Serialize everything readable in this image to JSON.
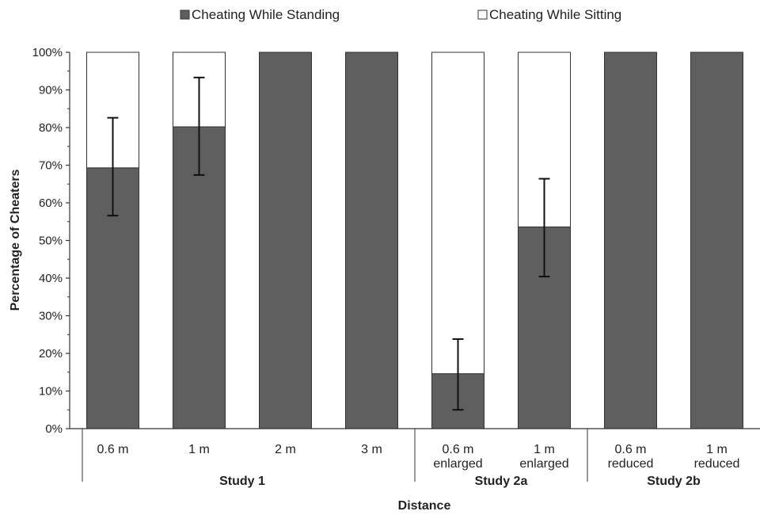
{
  "chart_data": {
    "type": "bar",
    "stacked": true,
    "xlabel": "Distance",
    "ylabel": "Percentage of Cheaters",
    "ylim": [
      0,
      100
    ],
    "yticks": [
      "0%",
      "10%",
      "20%",
      "30%",
      "40%",
      "50%",
      "60%",
      "70%",
      "80%",
      "90%",
      "100%"
    ],
    "legend_placement": "top",
    "categories": [
      [
        "0.6 m"
      ],
      [
        "1 m"
      ],
      [
        "2 m"
      ],
      [
        "3 m"
      ],
      [
        "0.6 m",
        "enlarged"
      ],
      [
        "1 m",
        "enlarged"
      ],
      [
        "0.6 m",
        "reduced"
      ],
      [
        "1 m",
        "reduced"
      ]
    ],
    "groups": [
      {
        "name": "Study 1",
        "start": 0,
        "end": 3
      },
      {
        "name": "Study 2a",
        "start": 4,
        "end": 5
      },
      {
        "name": "Study 2b",
        "start": 6,
        "end": 7
      }
    ],
    "series": [
      {
        "name": "Cheating While Standing",
        "color": "#5f5f5f",
        "values": [
          69.3,
          80.2,
          100,
          100,
          14.6,
          53.6,
          100,
          100
        ]
      },
      {
        "name": "Cheating While Sitting",
        "color": "#ffffff",
        "values": [
          30.7,
          19.8,
          0,
          0,
          85.4,
          46.4,
          0,
          0
        ]
      }
    ],
    "error_bars": [
      {
        "low": 56.6,
        "high": 82.6
      },
      {
        "low": 67.4,
        "high": 93.3
      },
      null,
      null,
      {
        "low": 5.0,
        "high": 23.8
      },
      {
        "low": 40.4,
        "high": 66.4
      },
      null,
      null
    ]
  }
}
